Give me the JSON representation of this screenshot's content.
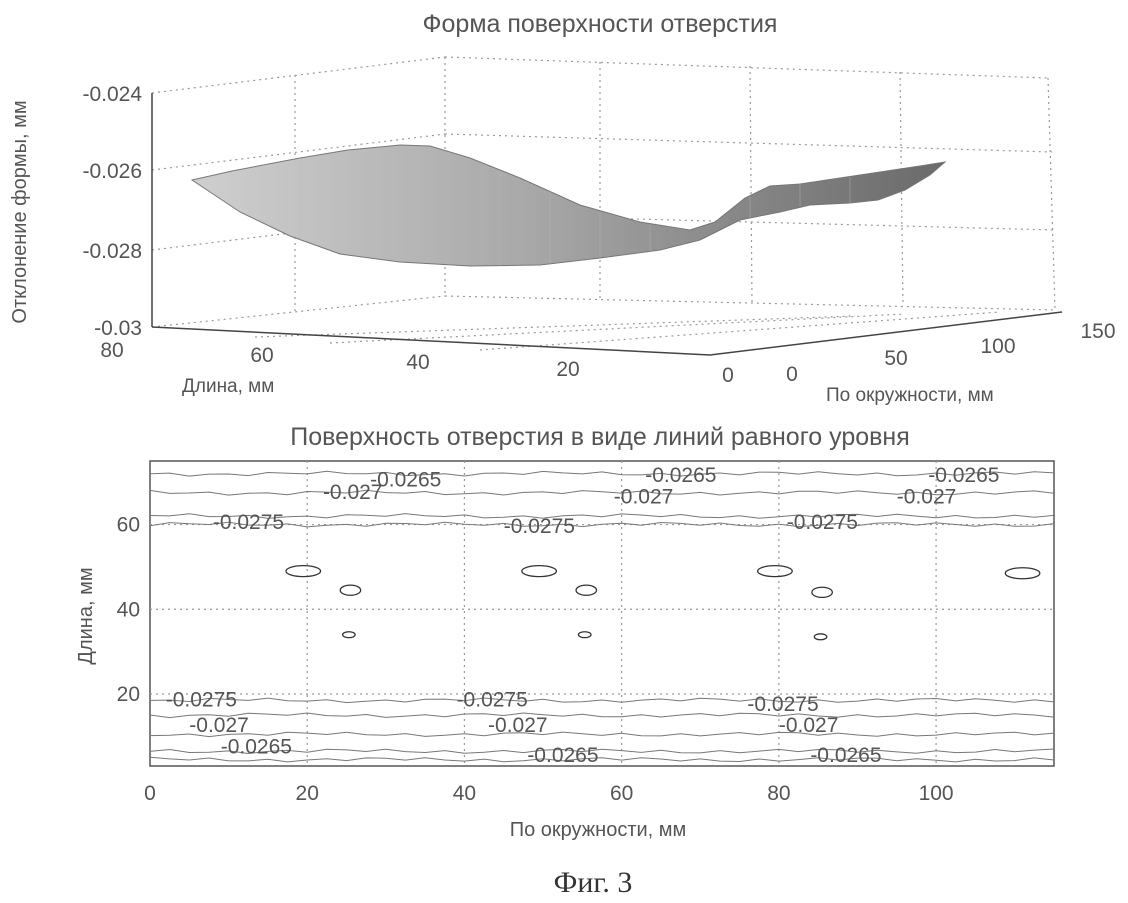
{
  "figure_caption": "Фиг. 3",
  "chart_data": [
    {
      "type": "surface",
      "title": "Форма поверхности отверстия",
      "zlabel": "Отклонение формы, мм",
      "ylabel": "Длина, мм",
      "xlabel": "По окружности, мм",
      "zlim": [
        -0.03,
        -0.024
      ],
      "z_ticks": [
        "-0.024",
        "-0.026",
        "-0.028",
        "-0.03"
      ],
      "length_ticks": [
        "80",
        "60",
        "40",
        "20",
        "0"
      ],
      "circ_ticks": [
        "0",
        "50",
        "100",
        "150"
      ],
      "surface_profile": {
        "circumference_mm": [
          0,
          10,
          20,
          30,
          40,
          50,
          60,
          70,
          80,
          90,
          100,
          110,
          120
        ],
        "deviation_mm": [
          -0.0262,
          -0.0262,
          -0.0265,
          -0.0271,
          -0.0276,
          -0.028,
          -0.0279,
          -0.0276,
          -0.0272,
          -0.0268,
          -0.0266,
          -0.0264,
          -0.0262
        ]
      },
      "grid": true
    },
    {
      "type": "contour",
      "title": "Поверхность отверстия в виде линий равного уровня",
      "xlabel": "По окружности, мм",
      "ylabel": "Длина, мм",
      "xlim": [
        0,
        115
      ],
      "ylim": [
        3,
        75
      ],
      "x_ticks": [
        "0",
        "20",
        "40",
        "60",
        "80",
        "100"
      ],
      "y_ticks": [
        "20",
        "40",
        "60"
      ],
      "grid": true,
      "levels": [
        "-0.0265",
        "-0.027",
        "-0.0275"
      ],
      "contour_labels": [
        {
          "text": "-0.0265",
          "x": 28,
          "y": 69
        },
        {
          "text": "-0.027",
          "x": 22,
          "y": 66
        },
        {
          "text": "-0.0275",
          "x": 8,
          "y": 59
        },
        {
          "text": "-0.0265",
          "x": 63,
          "y": 70
        },
        {
          "text": "-0.027",
          "x": 59,
          "y": 65
        },
        {
          "text": "-0.0275",
          "x": 45,
          "y": 58
        },
        {
          "text": "-0.0265",
          "x": 99,
          "y": 70
        },
        {
          "text": "-0.027",
          "x": 95,
          "y": 65
        },
        {
          "text": "-0.0275",
          "x": 81,
          "y": 59
        },
        {
          "text": "-0.0275",
          "x": 2,
          "y": 17
        },
        {
          "text": "-0.027",
          "x": 5,
          "y": 11
        },
        {
          "text": "-0.0265",
          "x": 9,
          "y": 6
        },
        {
          "text": "-0.0275",
          "x": 39,
          "y": 17
        },
        {
          "text": "-0.027",
          "x": 43,
          "y": 11
        },
        {
          "text": "-0.0265",
          "x": 48,
          "y": 4
        },
        {
          "text": "-0.0275",
          "x": 76,
          "y": 16
        },
        {
          "text": "-0.027",
          "x": 80,
          "y": 11
        },
        {
          "text": "-0.0265",
          "x": 84,
          "y": 4
        }
      ],
      "contour_lines": [
        {
          "y": 72
        },
        {
          "y": 67.5
        },
        {
          "y": 62
        },
        {
          "y": 60
        },
        {
          "y": 18.5
        },
        {
          "y": 15
        },
        {
          "y": 10.5
        },
        {
          "y": 6.5
        },
        {
          "y": 4.5
        }
      ],
      "closed_contours": [
        {
          "x": 19.5,
          "y": 49,
          "rx": 2.2,
          "ry": 1.3
        },
        {
          "x": 49.5,
          "y": 49,
          "rx": 2.2,
          "ry": 1.3
        },
        {
          "x": 79.5,
          "y": 49,
          "rx": 2.2,
          "ry": 1.3
        },
        {
          "x": 111,
          "y": 48.5,
          "rx": 2.2,
          "ry": 1.3
        },
        {
          "x": 25.5,
          "y": 44.5,
          "rx": 1.3,
          "ry": 1.2
        },
        {
          "x": 55.5,
          "y": 44.5,
          "rx": 1.3,
          "ry": 1.2
        },
        {
          "x": 85.5,
          "y": 44,
          "rx": 1.3,
          "ry": 1.2
        },
        {
          "x": 25.3,
          "y": 34,
          "rx": 0.8,
          "ry": 0.7
        },
        {
          "x": 55.3,
          "y": 34,
          "rx": 0.8,
          "ry": 0.7
        },
        {
          "x": 85.3,
          "y": 33.5,
          "rx": 0.8,
          "ry": 0.7
        }
      ]
    }
  ]
}
